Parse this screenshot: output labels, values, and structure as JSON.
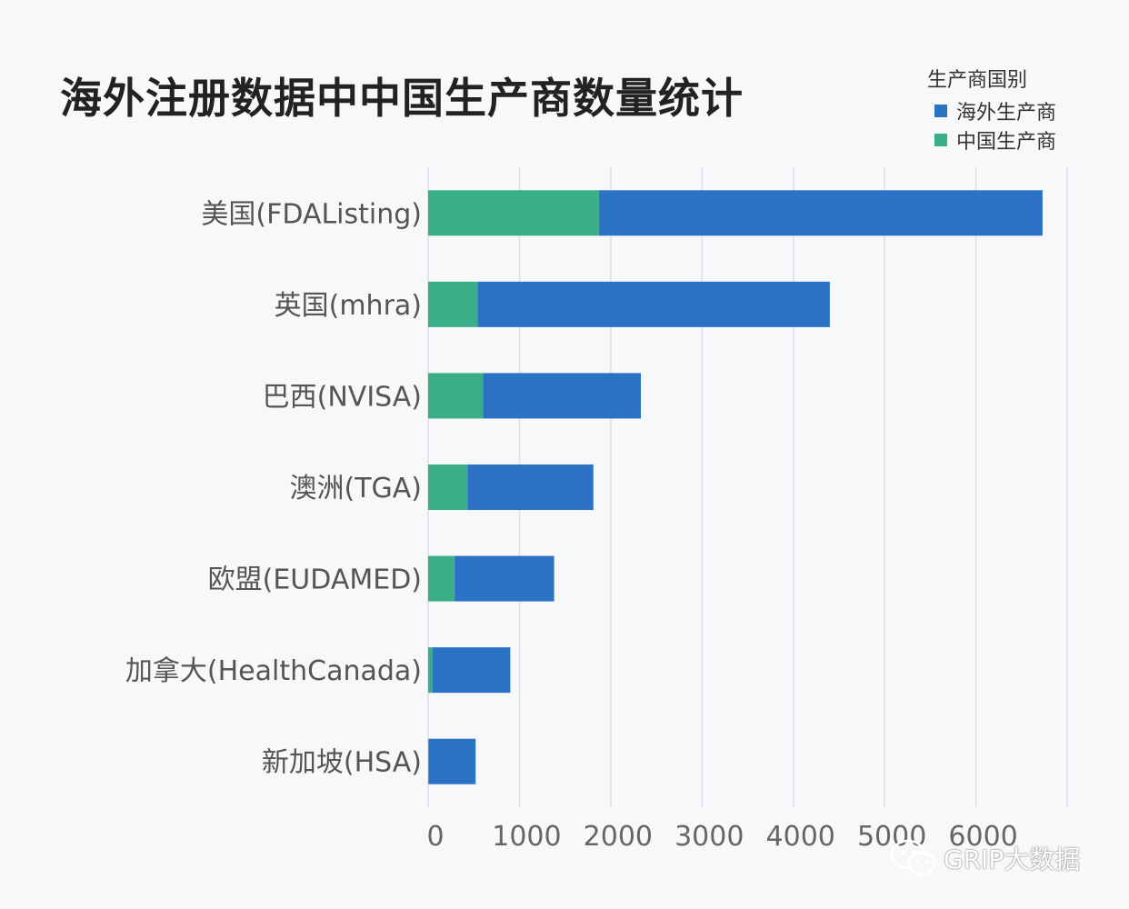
{
  "chart_data": {
    "type": "bar",
    "orientation": "horizontal",
    "stacked": true,
    "title": "海外注册数据中中国生产商数量统计",
    "legend_title": "生产商国别",
    "legend_position": "top-right",
    "categories": [
      "美国(FDAListing)",
      "英国(mhra)",
      "巴西(NVISA)",
      "澳洲(TGA)",
      "欧盟(EUDAMED)",
      "加拿大(HealthCanada)",
      "新加坡(HSA)"
    ],
    "series": [
      {
        "name": "中国生产商",
        "color": "#3aae87",
        "values": [
          1870,
          540,
          600,
          430,
          290,
          50,
          10
        ]
      },
      {
        "name": "海外生产商",
        "color": "#2c72c4",
        "values": [
          4860,
          3860,
          1730,
          1380,
          1090,
          850,
          510
        ]
      }
    ],
    "legend_order": [
      "海外生产商",
      "中国生产商"
    ],
    "x_ticks": [
      "0",
      "1000",
      "2000",
      "3000",
      "4000",
      "5000",
      "6000"
    ],
    "xlim": [
      0,
      7000
    ],
    "grid": true
  },
  "watermark": {
    "text": "GRIP大数据",
    "icon": "wechat-icon"
  }
}
